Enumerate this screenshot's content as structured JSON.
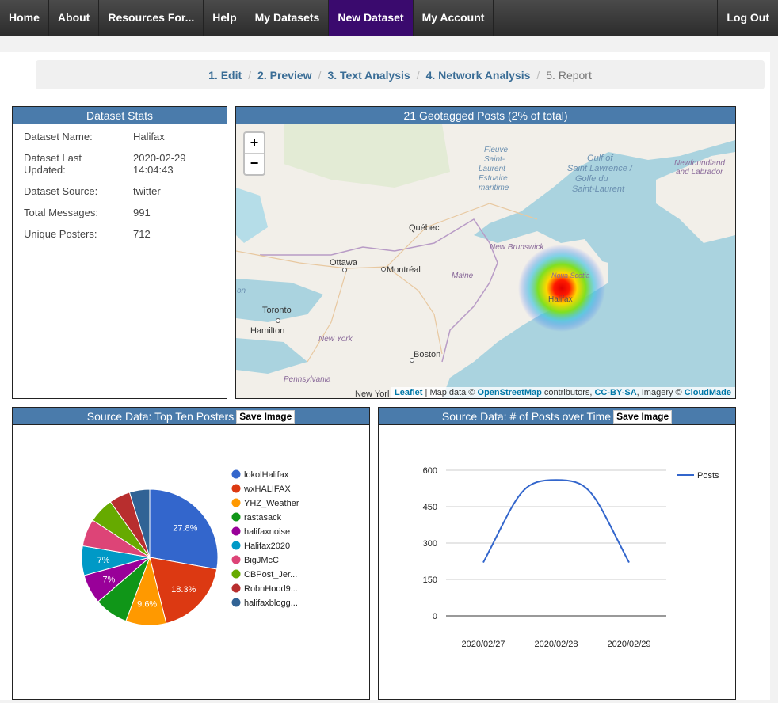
{
  "nav": {
    "items": [
      "Home",
      "About",
      "Resources For...",
      "Help",
      "My Datasets",
      "New Dataset",
      "My Account"
    ],
    "logout": "Log Out"
  },
  "steps": [
    "1. Edit",
    "2. Preview",
    "3. Text Analysis",
    "4. Network Analysis",
    "5. Report"
  ],
  "stats": {
    "title": "Dataset Stats",
    "rows": [
      {
        "label": "Dataset Name:",
        "value": "Halifax"
      },
      {
        "label": "Dataset Last Updated:",
        "value": "2020-02-29 14:04:43"
      },
      {
        "label": "Dataset Source:",
        "value": "twitter"
      },
      {
        "label": "Total Messages:",
        "value": "991"
      },
      {
        "label": "Unique Posters:",
        "value": "712"
      }
    ]
  },
  "map": {
    "title": "21 Geotagged Posts (2% of total)",
    "zoom_in": "+",
    "zoom_out": "−",
    "labels": {
      "fleuve": "Fleuve Saint-Laurent Estuaire maritime",
      "gulf": "Gulf of Saint Lawrence / Golfe du Saint-Laurent",
      "newfoundland": "Newfoundland and Labrador",
      "quebec": "Québec",
      "new_brunswick": "New Brunswick",
      "ottawa": "Ottawa",
      "montreal": "Montréal",
      "maine": "Maine",
      "nova_scotia": "Nova Scotia",
      "halifax": "Halifax",
      "toronto": "Toronto",
      "hamilton": "Hamilton",
      "new_york": "New York",
      "boston": "Boston",
      "pennsylvania": "Pennsylvania",
      "new_york_city": "New Yorl",
      "on": "on"
    },
    "attribution": {
      "leaflet": "Leaflet",
      "text1": " | Map data © ",
      "osm": "OpenStreetMap",
      "text2": " contributors, ",
      "license": "CC-BY-SA",
      "text3": ", Imagery © ",
      "cloudmade": "CloudMade"
    }
  },
  "pie_panel": {
    "title": "Source Data: Top Ten Posters",
    "save": "Save Image"
  },
  "line_panel": {
    "title": "Source Data: # of Posts over Time",
    "save": "Save Image"
  },
  "chart_data": [
    {
      "type": "pie",
      "categories": [
        "lokolHalifax",
        "wxHALIFAX",
        "YHZ_Weather",
        "rastasack",
        "halifaxnoise",
        "Halifax2020",
        "BigJMcC",
        "CBPost_Jer...",
        "RobnHood9...",
        "halifaxblogg..."
      ],
      "values": [
        27.8,
        18.3,
        9.6,
        8.0,
        7.0,
        7.0,
        6.5,
        6.0,
        5.0,
        4.8
      ],
      "data_labels": [
        "27.8%",
        "18.3%",
        "9.6%",
        "",
        "7%",
        "7%",
        "",
        "",
        "",
        ""
      ],
      "colors": [
        "#3366cc",
        "#dc3912",
        "#ff9900",
        "#109618",
        "#990099",
        "#0099c6",
        "#dd4477",
        "#66aa00",
        "#b82e2e",
        "#316395"
      ],
      "legend_position": "right"
    },
    {
      "type": "line",
      "x": [
        "2020/02/27",
        "2020/02/28",
        "2020/02/29"
      ],
      "series": [
        {
          "name": "Posts",
          "values": [
            220,
            560,
            220
          ]
        }
      ],
      "yticks": [
        0,
        150,
        300,
        450,
        600
      ],
      "ylim": [
        0,
        600
      ],
      "color": "#3366cc",
      "legend_position": "right",
      "grid": true
    }
  ]
}
